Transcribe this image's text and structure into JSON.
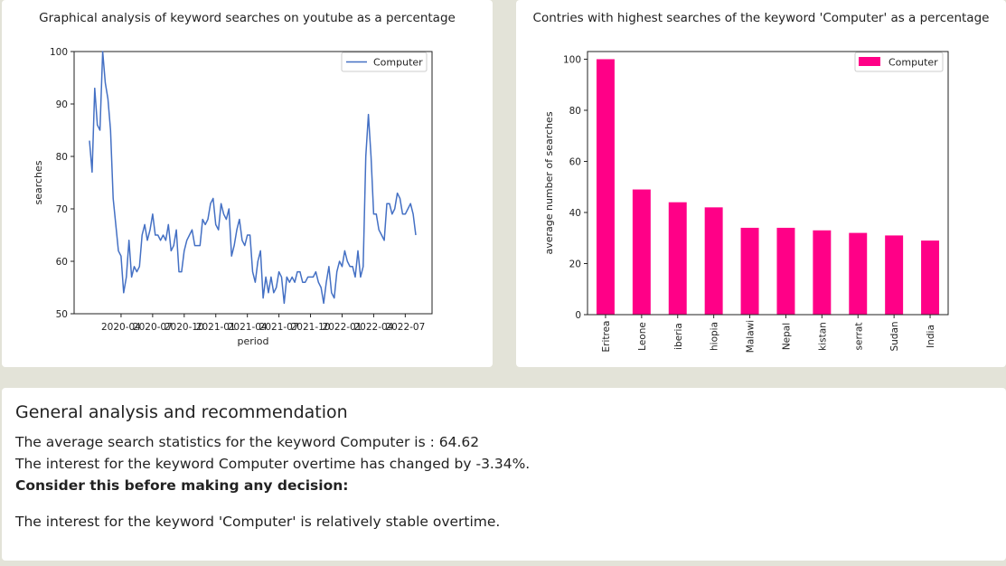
{
  "left_card": {
    "title": "Graphical analysis of keyword searches on youtube as a percentage"
  },
  "right_card": {
    "title": "Contries with highest searches of the keyword 'Computer' as a percentage"
  },
  "analysis": {
    "heading": "General analysis and recommendation",
    "average_text": "The average search statistics for the keyword Computer is : 64.62",
    "change_text": "The interest for the keyword Computer overtime has changed by -3.34%.",
    "consider_text": "Consider this before making any decision:",
    "stability_text": "The interest for the keyword 'Computer' is relatively stable overtime."
  },
  "chart_data": [
    {
      "type": "line",
      "title": "Graphical analysis of keyword searches on youtube as a percentage",
      "xlabel": "period",
      "ylabel": "searches",
      "ylim": [
        50,
        100
      ],
      "yticks": [
        50,
        60,
        70,
        80,
        90,
        100
      ],
      "xtick_labels": [
        "2020-04",
        "2020-07",
        "2020-10",
        "2021-01",
        "2021-04",
        "2021-07",
        "2021-10",
        "2022-01",
        "2022-04",
        "2022-07"
      ],
      "x_start": "2020-01",
      "x_end": "2022-08",
      "legend": "top-right",
      "line_color": "#4470c4",
      "series": [
        {
          "name": "Computer",
          "values": [
            83,
            77,
            93,
            86,
            85,
            100,
            94,
            91,
            85,
            72,
            67,
            62,
            61,
            54,
            57,
            64,
            57,
            59,
            58,
            59,
            65,
            67,
            64,
            66,
            69,
            65,
            65,
            64,
            65,
            64,
            67,
            62,
            63,
            66,
            58,
            58,
            62,
            64,
            65,
            66,
            63,
            63,
            63,
            68,
            67,
            68,
            71,
            72,
            67,
            66,
            71,
            69,
            68,
            70,
            61,
            63,
            66,
            68,
            64,
            63,
            65,
            65,
            58,
            56,
            60,
            62,
            53,
            57,
            54,
            57,
            54,
            55,
            58,
            57,
            52,
            57,
            56,
            57,
            56,
            58,
            58,
            56,
            56,
            57,
            57,
            57,
            58,
            56,
            55,
            52,
            56,
            59,
            54,
            53,
            58,
            60,
            59,
            62,
            60,
            59,
            59,
            57,
            62,
            57,
            59,
            80,
            88,
            80,
            69,
            69,
            66,
            65,
            64,
            71,
            71,
            69,
            70,
            73,
            72,
            69,
            69,
            70,
            71,
            69,
            65
          ]
        }
      ]
    },
    {
      "type": "bar",
      "title": "Contries with highest searches of the keyword 'Computer' as a percentage",
      "xlabel": "",
      "ylabel": "average number of searches",
      "ylim": [
        0,
        103
      ],
      "yticks": [
        0,
        20,
        40,
        60,
        80,
        100
      ],
      "legend": "top-right",
      "bar_color": "#ff0087",
      "categories": [
        "Eritrea",
        "Sierra Leone",
        "Liberia",
        "Ethiopia",
        "Malawi",
        "Nepal",
        "Pakistan",
        "Montserrat",
        "Sudan",
        "India"
      ],
      "category_visible_text": [
        "Eritrea",
        "Leone",
        "iberia",
        "hiopia",
        "Malawi",
        "Nepal",
        "kistan",
        "serrat",
        "Sudan",
        "India"
      ],
      "series": [
        {
          "name": "Computer",
          "values": [
            100,
            49,
            44,
            42,
            34,
            34,
            33,
            32,
            31,
            29
          ]
        }
      ]
    }
  ]
}
